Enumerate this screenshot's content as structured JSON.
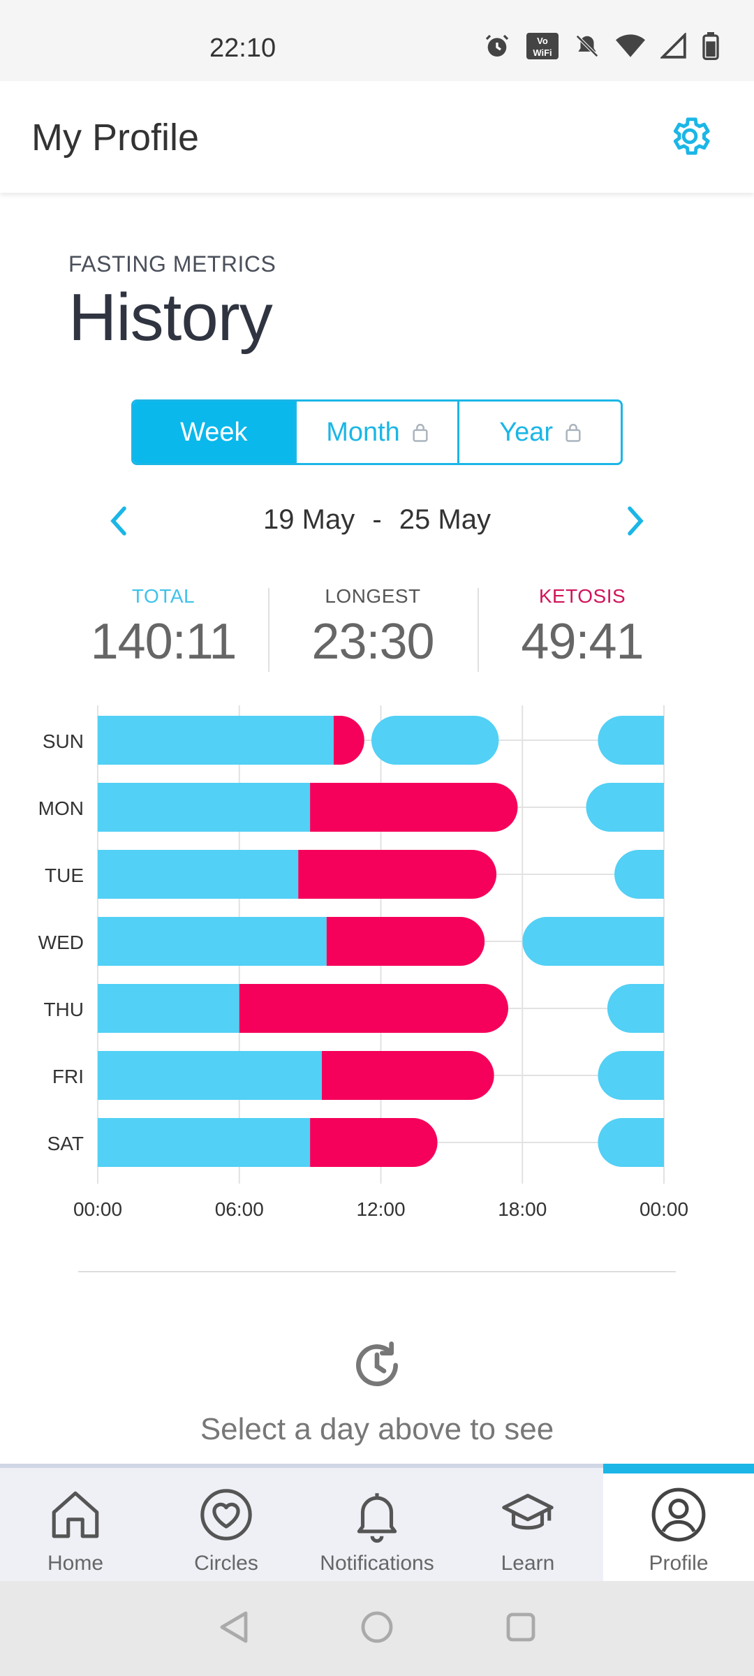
{
  "status_bar": {
    "time": "22:10",
    "icons": [
      "alarm-icon",
      "vowifi-icon",
      "bell-off-icon",
      "wifi-icon",
      "signal-icon",
      "battery-icon"
    ],
    "vowifi_text_top": "Vo",
    "vowifi_text_bottom": "WiFi"
  },
  "header": {
    "title": "My Profile",
    "settings_icon": "gear-icon"
  },
  "section": {
    "label": "FASTING METRICS",
    "title": "History"
  },
  "segmented": [
    {
      "label": "Week",
      "active": true,
      "locked": false
    },
    {
      "label": "Month",
      "active": false,
      "locked": true
    },
    {
      "label": "Year",
      "active": false,
      "locked": true
    }
  ],
  "date_range": {
    "start": "19 May",
    "separator": "-",
    "end": "25 May"
  },
  "metrics": [
    {
      "label": "TOTAL",
      "value": "140:11",
      "color": "#3fc2ea"
    },
    {
      "label": "LONGEST",
      "value": "23:30",
      "color": "#555555"
    },
    {
      "label": "KETOSIS",
      "value": "49:41",
      "color": "#d0145a"
    }
  ],
  "chart_data": {
    "type": "bar",
    "orientation": "horizontal-timeline",
    "title": "",
    "xlabel": "",
    "ylabel": "",
    "x_ticks": [
      "00:00",
      "06:00",
      "12:00",
      "18:00",
      "00:00"
    ],
    "xlim": [
      0,
      24
    ],
    "grid": true,
    "colors": {
      "fasting": "#52d0f5",
      "ketosis": "#f5005a",
      "grid": "#e2e2e2"
    },
    "rows": [
      {
        "day": "SUN",
        "segments": [
          {
            "start": 0,
            "end": 10.0,
            "type": "fasting"
          },
          {
            "start": 10.0,
            "end": 11.3,
            "type": "ketosis"
          },
          {
            "start": 11.6,
            "end": 17.0,
            "type": "fasting"
          },
          {
            "start": 21.2,
            "end": 24,
            "type": "fasting"
          }
        ]
      },
      {
        "day": "MON",
        "segments": [
          {
            "start": 0,
            "end": 9.0,
            "type": "fasting"
          },
          {
            "start": 9.0,
            "end": 17.8,
            "type": "ketosis"
          },
          {
            "start": 20.7,
            "end": 24,
            "type": "fasting"
          }
        ]
      },
      {
        "day": "TUE",
        "segments": [
          {
            "start": 0,
            "end": 8.5,
            "type": "fasting"
          },
          {
            "start": 8.5,
            "end": 16.9,
            "type": "ketosis"
          },
          {
            "start": 21.9,
            "end": 24,
            "type": "fasting"
          }
        ]
      },
      {
        "day": "WED",
        "segments": [
          {
            "start": 0,
            "end": 9.7,
            "type": "fasting"
          },
          {
            "start": 9.7,
            "end": 16.4,
            "type": "ketosis"
          },
          {
            "start": 18.0,
            "end": 24,
            "type": "fasting"
          }
        ]
      },
      {
        "day": "THU",
        "segments": [
          {
            "start": 0,
            "end": 6.0,
            "type": "fasting"
          },
          {
            "start": 6.0,
            "end": 17.4,
            "type": "ketosis"
          },
          {
            "start": 21.6,
            "end": 24,
            "type": "fasting"
          }
        ]
      },
      {
        "day": "FRI",
        "segments": [
          {
            "start": 0,
            "end": 9.5,
            "type": "fasting"
          },
          {
            "start": 9.5,
            "end": 16.8,
            "type": "ketosis"
          },
          {
            "start": 21.2,
            "end": 24,
            "type": "fasting"
          }
        ]
      },
      {
        "day": "SAT",
        "segments": [
          {
            "start": 0,
            "end": 9.0,
            "type": "fasting"
          },
          {
            "start": 9.0,
            "end": 14.4,
            "type": "ketosis"
          },
          {
            "start": 21.2,
            "end": 24,
            "type": "fasting"
          }
        ]
      }
    ]
  },
  "empty_state": {
    "icon": "history-icon",
    "text": "Select a day above to see"
  },
  "bottom_nav": [
    {
      "label": "Home",
      "icon": "home-icon",
      "active": false
    },
    {
      "label": "Circles",
      "icon": "heart-circle-icon",
      "active": false
    },
    {
      "label": "Notifications",
      "icon": "bell-icon",
      "active": false
    },
    {
      "label": "Learn",
      "icon": "graduation-cap-icon",
      "active": false
    },
    {
      "label": "Profile",
      "icon": "user-icon",
      "active": true
    }
  ]
}
